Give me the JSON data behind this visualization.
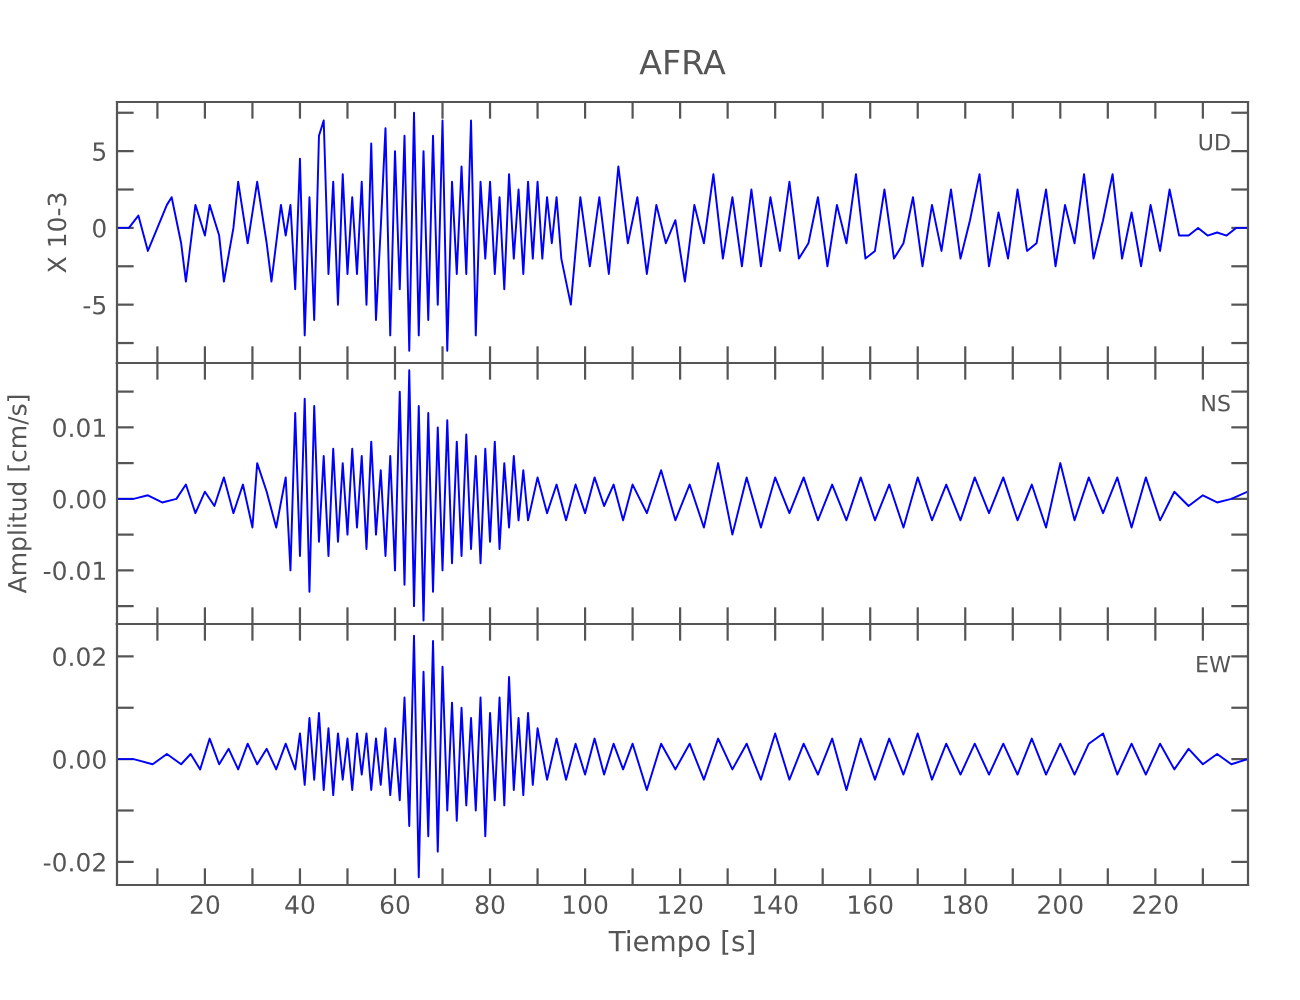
{
  "chart_data": [
    {
      "type": "line",
      "title": "AFRA",
      "ylabel": "X 10-3",
      "annotations": [
        "UD"
      ],
      "tick_labels": "y",
      "grid": false,
      "legend": false,
      "xlim": [
        1.5,
        239.5
      ],
      "ylim": [
        -8.8,
        8.2
      ],
      "xticks": [
        {
          "value": 10,
          "label": null
        },
        {
          "value": 20,
          "label": null
        },
        {
          "value": 30,
          "label": null
        },
        {
          "value": 40,
          "label": null
        },
        {
          "value": 50,
          "label": null
        },
        {
          "value": 60,
          "label": null
        },
        {
          "value": 70,
          "label": null
        },
        {
          "value": 80,
          "label": null
        },
        {
          "value": 90,
          "label": null
        },
        {
          "value": 100,
          "label": null
        },
        {
          "value": 110,
          "label": null
        },
        {
          "value": 120,
          "label": null
        },
        {
          "value": 130,
          "label": null
        },
        {
          "value": 140,
          "label": null
        },
        {
          "value": 150,
          "label": null
        },
        {
          "value": 160,
          "label": null
        },
        {
          "value": 170,
          "label": null
        },
        {
          "value": 180,
          "label": null
        },
        {
          "value": 190,
          "label": null
        },
        {
          "value": 200,
          "label": null
        },
        {
          "value": 210,
          "label": null
        },
        {
          "value": 220,
          "label": null
        },
        {
          "value": 230,
          "label": null
        }
      ],
      "yticks": [
        {
          "value": -7.5,
          "label": null
        },
        -5,
        {
          "value": -2.5,
          "label": null
        },
        0,
        {
          "value": 2.5,
          "label": null
        },
        5,
        {
          "value": 7.5,
          "label": null
        }
      ],
      "series": [
        {
          "color": "#0000ff",
          "x": [
            1.5,
            4,
            6,
            8,
            10,
            12,
            13,
            15,
            16,
            18,
            20,
            21,
            23,
            24,
            26,
            27,
            29,
            31,
            33,
            34,
            36,
            37,
            38,
            39,
            40,
            41,
            42,
            43,
            44,
            45,
            46,
            47,
            48,
            49,
            50,
            51,
            52,
            53,
            54,
            55,
            56,
            57,
            58,
            59,
            60,
            61,
            62,
            63,
            64,
            65,
            66,
            67,
            68,
            69,
            70,
            71,
            72,
            73,
            74,
            75,
            76,
            77,
            78,
            79,
            80,
            81,
            82,
            83,
            84,
            85,
            86,
            87,
            88,
            89,
            90,
            91,
            92,
            93,
            94,
            95,
            97,
            99,
            101,
            103,
            105,
            107,
            109,
            111,
            113,
            115,
            117,
            119,
            121,
            123,
            125,
            127,
            129,
            131,
            133,
            135,
            137,
            139,
            141,
            143,
            145,
            147,
            149,
            151,
            153,
            155,
            157,
            159,
            161,
            163,
            165,
            167,
            169,
            171,
            173,
            175,
            177,
            179,
            181,
            183,
            185,
            187,
            189,
            191,
            193,
            195,
            197,
            199,
            201,
            203,
            205,
            207,
            209,
            211,
            213,
            215,
            217,
            219,
            221,
            223,
            225,
            227,
            229,
            231,
            233,
            235,
            237,
            239.4
          ],
          "values": [
            0,
            0,
            0.8,
            -1.5,
            0,
            1.5,
            2,
            -1,
            -3.5,
            1.5,
            -0.5,
            1.5,
            -0.5,
            -3.5,
            0,
            3,
            -1,
            3,
            -1,
            -3.5,
            1.5,
            -0.5,
            1.5,
            -4,
            4.5,
            -7,
            2,
            -6,
            6,
            7,
            -3,
            3,
            -5,
            3.5,
            -3,
            2,
            -3,
            3,
            -5,
            5.5,
            -6,
            0,
            6.5,
            -7,
            5,
            -4,
            6,
            -8,
            7.5,
            -7,
            5,
            -6,
            6,
            -5,
            7,
            -8,
            3,
            -3,
            4,
            -3,
            7,
            -7,
            3,
            -2,
            3,
            -3,
            2,
            -4,
            3.5,
            -2,
            2.5,
            -3,
            3,
            -2,
            3,
            -2,
            2,
            -1,
            2,
            -2,
            -5,
            2,
            -2.5,
            2,
            -3,
            4,
            -1,
            2,
            -3,
            1.5,
            -1,
            0.5,
            -3.5,
            1.5,
            -1,
            3.5,
            -2,
            2,
            -2.5,
            2.5,
            -2.5,
            2,
            -1.5,
            3,
            -2,
            -1,
            2,
            -2.5,
            1.5,
            -1,
            3.5,
            -2,
            -1.5,
            2.5,
            -2,
            -1,
            2,
            -2.5,
            1.5,
            -1.5,
            2.5,
            -2,
            0.5,
            3.5,
            -2.5,
            1,
            -2,
            2.5,
            -1.5,
            -1,
            2.5,
            -2.5,
            1.5,
            -1,
            3.5,
            -2,
            0.5,
            3.5,
            -2,
            1,
            -2.5,
            1.5,
            -1.5,
            2.5,
            -0.5,
            -0.5,
            0,
            -0.5,
            -0.3,
            -0.5,
            0,
            0
          ]
        }
      ]
    },
    {
      "type": "line",
      "ylabel": "Amplitud [cm/s]",
      "annotations": [
        "NS"
      ],
      "tick_labels": "y",
      "grid": false,
      "legend": false,
      "xlim": [
        1.5,
        239.5
      ],
      "ylim": [
        -0.0175,
        0.019
      ],
      "xticks": [
        {
          "value": 10,
          "label": null
        },
        {
          "value": 20,
          "label": null
        },
        {
          "value": 30,
          "label": null
        },
        {
          "value": 40,
          "label": null
        },
        {
          "value": 50,
          "label": null
        },
        {
          "value": 60,
          "label": null
        },
        {
          "value": 70,
          "label": null
        },
        {
          "value": 80,
          "label": null
        },
        {
          "value": 90,
          "label": null
        },
        {
          "value": 100,
          "label": null
        },
        {
          "value": 110,
          "label": null
        },
        {
          "value": 120,
          "label": null
        },
        {
          "value": 130,
          "label": null
        },
        {
          "value": 140,
          "label": null
        },
        {
          "value": 150,
          "label": null
        },
        {
          "value": 160,
          "label": null
        },
        {
          "value": 170,
          "label": null
        },
        {
          "value": 180,
          "label": null
        },
        {
          "value": 190,
          "label": null
        },
        {
          "value": 200,
          "label": null
        },
        {
          "value": 210,
          "label": null
        },
        {
          "value": 220,
          "label": null
        },
        {
          "value": 230,
          "label": null
        }
      ],
      "yticks": [
        {
          "value": -0.015,
          "label": null
        },
        {
          "value": -0.01,
          "label": "-0.01"
        },
        {
          "value": -0.005,
          "label": null
        },
        {
          "value": 0,
          "label": "0.00"
        },
        {
          "value": 0.005,
          "label": null
        },
        {
          "value": 0.01,
          "label": "0.01"
        },
        {
          "value": 0.015,
          "label": null
        }
      ],
      "series": [
        {
          "color": "#0000ff",
          "x": [
            1.5,
            5,
            8,
            11,
            14,
            16,
            18,
            20,
            22,
            24,
            26,
            28,
            30,
            31,
            33,
            35,
            37,
            38,
            39,
            40,
            41,
            42,
            43,
            44,
            45,
            46,
            47,
            48,
            49,
            50,
            51,
            52,
            53,
            54,
            55,
            56,
            57,
            58,
            59,
            60,
            61,
            62,
            63,
            64,
            65,
            66,
            67,
            68,
            69,
            70,
            71,
            72,
            73,
            74,
            75,
            76,
            77,
            78,
            79,
            80,
            81,
            82,
            83,
            84,
            85,
            86,
            87,
            88,
            90,
            92,
            94,
            96,
            98,
            100,
            102,
            104,
            106,
            108,
            110,
            113,
            116,
            119,
            122,
            125,
            128,
            131,
            134,
            137,
            140,
            143,
            146,
            149,
            152,
            155,
            158,
            161,
            164,
            167,
            170,
            173,
            176,
            179,
            182,
            185,
            188,
            191,
            194,
            197,
            200,
            203,
            206,
            209,
            212,
            215,
            218,
            221,
            224,
            227,
            230,
            233,
            236,
            239.4
          ],
          "values": [
            0,
            0,
            0.0005,
            -0.0005,
            0,
            0.002,
            -0.002,
            0.001,
            -0.001,
            0.003,
            -0.002,
            0.002,
            -0.004,
            0.005,
            0.001,
            -0.004,
            0.003,
            -0.01,
            0.012,
            -0.008,
            0.014,
            -0.013,
            0.013,
            -0.006,
            0.006,
            -0.008,
            0.007,
            -0.006,
            0.005,
            -0.005,
            0.007,
            -0.004,
            0.006,
            -0.007,
            0.008,
            -0.005,
            0.004,
            -0.008,
            0.006,
            -0.01,
            0.015,
            -0.012,
            0.018,
            -0.015,
            0.013,
            -0.017,
            0.012,
            -0.013,
            0.01,
            -0.01,
            0.011,
            -0.009,
            0.008,
            -0.008,
            0.009,
            -0.007,
            0.006,
            -0.009,
            0.007,
            -0.006,
            0.008,
            -0.007,
            0.005,
            -0.004,
            0.006,
            -0.003,
            0.004,
            -0.003,
            0.003,
            -0.002,
            0.002,
            -0.003,
            0.002,
            -0.002,
            0.003,
            -0.001,
            0.002,
            -0.003,
            0.002,
            -0.002,
            0.004,
            -0.003,
            0.002,
            -0.004,
            0.005,
            -0.005,
            0.003,
            -0.004,
            0.003,
            -0.002,
            0.003,
            -0.003,
            0.002,
            -0.003,
            0.003,
            -0.003,
            0.002,
            -0.004,
            0.003,
            -0.003,
            0.002,
            -0.003,
            0.003,
            -0.002,
            0.003,
            -0.003,
            0.002,
            -0.004,
            0.005,
            -0.003,
            0.003,
            -0.002,
            0.003,
            -0.004,
            0.003,
            -0.003,
            0.001,
            -0.001,
            0.0005,
            -0.0005,
            0,
            0.001
          ]
        }
      ]
    },
    {
      "type": "line",
      "xlabel": "Tiempo [s]",
      "annotations": [
        "EW"
      ],
      "grid": false,
      "legend": false,
      "xlim": [
        1.5,
        239.5
      ],
      "ylim": [
        -0.0245,
        0.0263
      ],
      "xticks": [
        {
          "value": 10,
          "label": null
        },
        20,
        {
          "value": 30,
          "label": null
        },
        40,
        {
          "value": 50,
          "label": null
        },
        60,
        {
          "value": 70,
          "label": null
        },
        80,
        {
          "value": 90,
          "label": null
        },
        100,
        {
          "value": 110,
          "label": null
        },
        120,
        {
          "value": 130,
          "label": null
        },
        140,
        {
          "value": 150,
          "label": null
        },
        160,
        {
          "value": 170,
          "label": null
        },
        180,
        {
          "value": 190,
          "label": null
        },
        200,
        {
          "value": 210,
          "label": null
        },
        220,
        {
          "value": 230,
          "label": null
        }
      ],
      "yticks": [
        {
          "value": -0.02,
          "label": "-0.02"
        },
        {
          "value": -0.01,
          "label": null
        },
        {
          "value": 0,
          "label": "0.00"
        },
        {
          "value": 0.01,
          "label": null
        },
        {
          "value": 0.02,
          "label": "0.02"
        }
      ],
      "series": [
        {
          "color": "#0000ff",
          "x": [
            1.5,
            5,
            9,
            12,
            15,
            17,
            19,
            21,
            23,
            25,
            27,
            29,
            31,
            33,
            35,
            37,
            39,
            40,
            41,
            42,
            43,
            44,
            45,
            46,
            47,
            48,
            49,
            50,
            51,
            52,
            53,
            54,
            55,
            56,
            57,
            58,
            59,
            60,
            61,
            62,
            63,
            64,
            65,
            66,
            67,
            68,
            69,
            70,
            71,
            72,
            73,
            74,
            75,
            76,
            77,
            78,
            79,
            80,
            81,
            82,
            83,
            84,
            85,
            86,
            87,
            88,
            89,
            90,
            92,
            94,
            96,
            98,
            100,
            102,
            104,
            106,
            108,
            110,
            113,
            116,
            119,
            122,
            125,
            128,
            131,
            134,
            137,
            140,
            143,
            146,
            149,
            152,
            155,
            158,
            161,
            164,
            167,
            170,
            173,
            176,
            179,
            182,
            185,
            188,
            191,
            194,
            197,
            200,
            203,
            206,
            209,
            212,
            215,
            218,
            221,
            224,
            227,
            230,
            233,
            236,
            239.4
          ],
          "values": [
            0,
            0,
            -0.001,
            0.001,
            -0.001,
            0.001,
            -0.002,
            0.004,
            -0.001,
            0.002,
            -0.002,
            0.003,
            -0.001,
            0.002,
            -0.002,
            0.003,
            -0.002,
            0.005,
            -0.005,
            0.008,
            -0.004,
            0.009,
            -0.006,
            0.006,
            -0.007,
            0.005,
            -0.004,
            0.004,
            -0.006,
            0.005,
            -0.003,
            0.005,
            -0.006,
            0.004,
            -0.005,
            0.006,
            -0.007,
            0.004,
            -0.008,
            0.012,
            -0.013,
            0.024,
            -0.023,
            0.017,
            -0.015,
            0.023,
            -0.018,
            0.018,
            -0.01,
            0.011,
            -0.012,
            0.01,
            -0.009,
            0.008,
            -0.01,
            0.012,
            -0.015,
            0.009,
            -0.008,
            0.012,
            -0.009,
            0.016,
            -0.006,
            0.008,
            -0.007,
            0.009,
            -0.005,
            0.006,
            -0.004,
            0.004,
            -0.004,
            0.003,
            -0.003,
            0.004,
            -0.003,
            0.003,
            -0.002,
            0.003,
            -0.006,
            0.003,
            -0.002,
            0.003,
            -0.004,
            0.004,
            -0.002,
            0.003,
            -0.004,
            0.005,
            -0.004,
            0.003,
            -0.003,
            0.004,
            -0.006,
            0.004,
            -0.004,
            0.004,
            -0.003,
            0.005,
            -0.004,
            0.003,
            -0.003,
            0.003,
            -0.003,
            0.003,
            -0.003,
            0.004,
            -0.003,
            0.003,
            -0.003,
            0.003,
            0.005,
            -0.003,
            0.003,
            -0.003,
            0.003,
            -0.002,
            0.002,
            -0.001,
            0.001,
            -0.001,
            0
          ]
        }
      ]
    }
  ]
}
